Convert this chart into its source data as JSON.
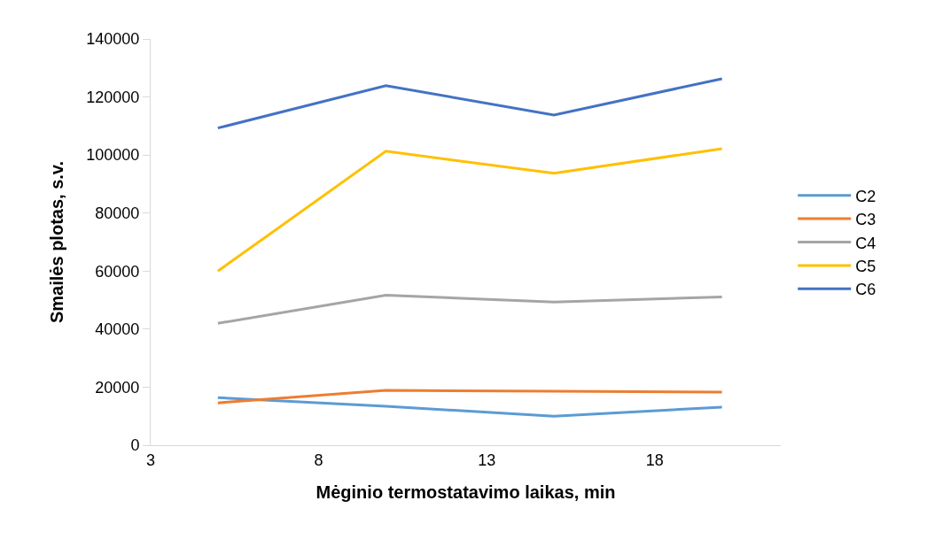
{
  "chart_data": {
    "type": "line",
    "xlabel": "Mėginio termostatavimo laikas, min",
    "ylabel": "Smailės plotas, s.v.",
    "x": [
      5,
      10,
      15,
      20
    ],
    "series": [
      {
        "name": "C2",
        "color": "#5b9bd5",
        "values": [
          16400,
          13400,
          10000,
          13100
        ]
      },
      {
        "name": "C3",
        "color": "#ed7d31",
        "values": [
          14600,
          18900,
          18600,
          18300
        ]
      },
      {
        "name": "C4",
        "color": "#a5a5a5",
        "values": [
          42000,
          51700,
          49300,
          51100
        ]
      },
      {
        "name": "C5",
        "color": "#ffc000",
        "values": [
          60000,
          101300,
          93700,
          102200
        ]
      },
      {
        "name": "C6",
        "color": "#4472c4",
        "values": [
          109300,
          123900,
          113800,
          126300
        ]
      }
    ],
    "xlim": [
      3,
      21.75
    ],
    "xticks": [
      3,
      8,
      13,
      18
    ],
    "ylim": [
      0,
      140000
    ],
    "yticks": [
      0,
      20000,
      40000,
      60000,
      80000,
      100000,
      120000,
      140000
    ],
    "legend": "right",
    "marker": "none",
    "line_style": "solid"
  }
}
